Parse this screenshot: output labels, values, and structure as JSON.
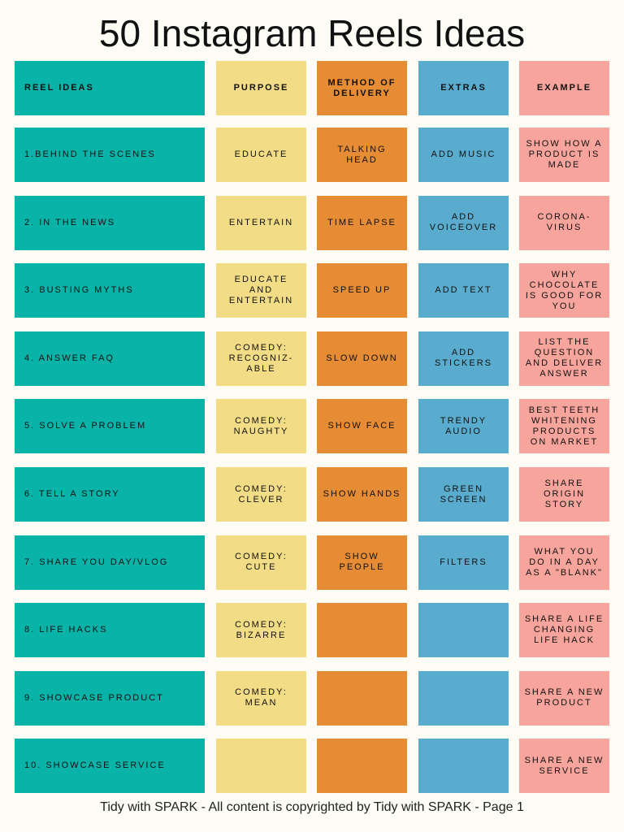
{
  "title": "50 Instagram Reels Ideas",
  "table": {
    "headers": [
      "REEL IDEAS",
      "PURPOSE",
      "METHOD OF DELIVERY",
      "EXTRAS",
      "EXAMPLE"
    ],
    "rows": [
      [
        "1.BEHIND THE SCENES",
        "EDUCATE",
        "TALKING HEAD",
        "ADD MUSIC",
        "SHOW HOW A PRODUCT IS MADE"
      ],
      [
        "2. IN THE NEWS",
        "ENTERTAIN",
        "TIME LAPSE",
        "ADD VOICEOVER",
        "CORONA-VIRUS"
      ],
      [
        "3. BUSTING MYTHS",
        "EDUCATE AND ENTERTAIN",
        "SPEED UP",
        "ADD TEXT",
        "WHY CHOCOLATE IS GOOD FOR YOU"
      ],
      [
        "4. ANSWER FAQ",
        "COMEDY: RECOGNIZ-ABLE",
        "SLOW DOWN",
        "ADD STICKERS",
        "LIST THE QUESTION AND DELIVER ANSWER"
      ],
      [
        "5. SOLVE A PROBLEM",
        "COMEDY: NAUGHTY",
        "SHOW FACE",
        "TRENDY AUDIO",
        "BEST TEETH WHITENING PRODUCTS ON MARKET"
      ],
      [
        "6. TELL A STORY",
        "COMEDY: CLEVER",
        "SHOW HANDS",
        "GREEN SCREEN",
        "SHARE ORIGIN STORY"
      ],
      [
        "7. SHARE YOU DAY/VLOG",
        "COMEDY: CUTE",
        "SHOW PEOPLE",
        "FILTERS",
        "WHAT YOU DO IN A DAY AS A \"BLANK\""
      ],
      [
        "8. LIFE HACKS",
        "COMEDY: BIZARRE",
        null,
        null,
        "SHARE A LIFE CHANGING LIFE HACK"
      ],
      [
        "9. SHOWCASE PRODUCT",
        "COMEDY: MEAN",
        null,
        null,
        "SHARE A NEW PRODUCT"
      ],
      [
        "10. SHOWCASE SERVICE",
        null,
        null,
        null,
        "SHARE A NEW SERVICE"
      ]
    ]
  },
  "footer": "Tidy with SPARK - All content is copyrighted by Tidy with SPARK - Page 1"
}
